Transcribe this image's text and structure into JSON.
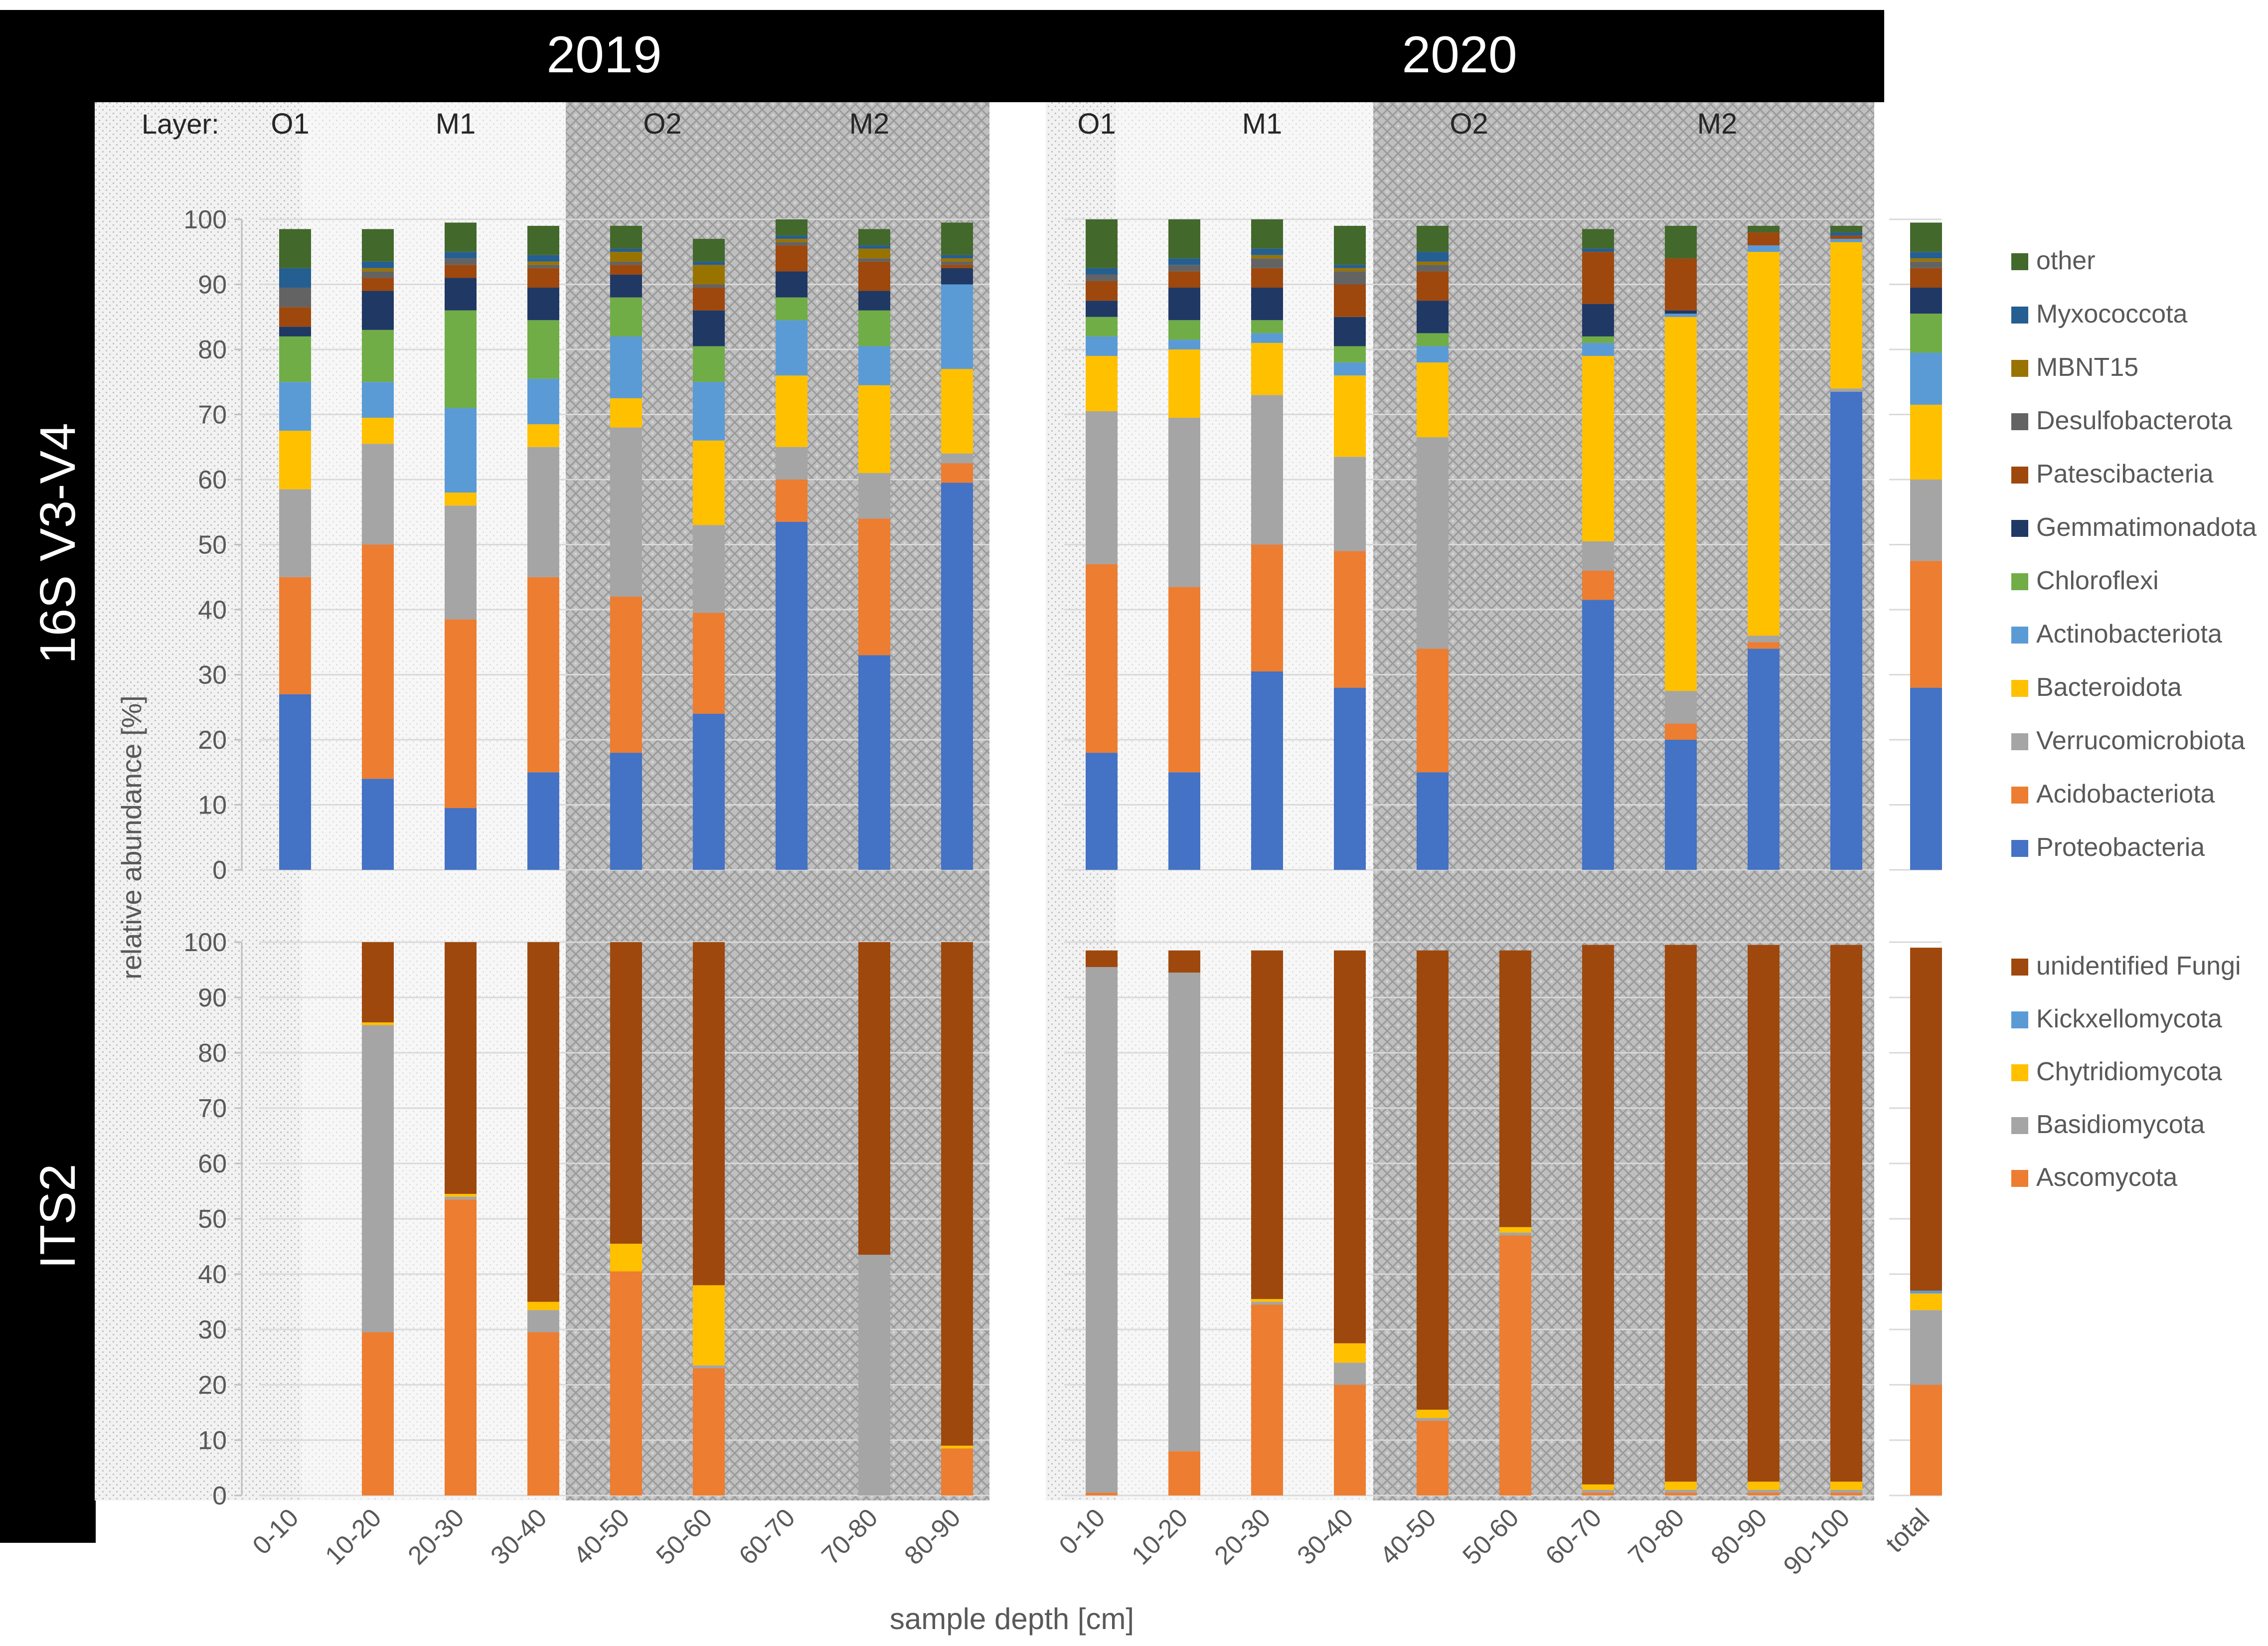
{
  "chart_data": [
    {
      "type": "bar",
      "stacked": true,
      "title": "16S V3-V4",
      "ylabel": "relative abundance [%]",
      "xlabel": "sample depth [cm]",
      "ylim": [
        0,
        100
      ],
      "yticks": [
        0,
        10,
        20,
        30,
        40,
        50,
        60,
        70,
        80,
        90,
        100
      ],
      "layer_label": "Layer:",
      "groups": [
        {
          "year": "2019",
          "categories": [
            "0-10",
            "10-20",
            "20-30",
            "30-40",
            "40-50",
            "50-60",
            "60-70",
            "70-80",
            "80-90"
          ],
          "layers": [
            {
              "name": "O1",
              "from": 0,
              "to": 0,
              "pattern": "light"
            },
            {
              "name": "M1",
              "from": 1,
              "to": 3,
              "pattern": "lighter"
            },
            {
              "name": "O2",
              "from": 4,
              "to": 5,
              "pattern": "dark"
            },
            {
              "name": "M2",
              "from": 6,
              "to": 8,
              "pattern": "dark"
            }
          ],
          "series": [
            {
              "name": "Proteobacteria",
              "values": [
                27,
                14,
                9.5,
                15,
                18,
                24,
                53.5,
                33,
                59.5
              ]
            },
            {
              "name": "Acidobacteriota",
              "values": [
                18,
                36,
                29,
                30,
                24,
                15.5,
                6.5,
                21,
                3
              ]
            },
            {
              "name": "Verrucomicrobiota",
              "values": [
                13.5,
                15.5,
                17.5,
                20,
                26,
                13.5,
                5,
                7,
                1.5
              ]
            },
            {
              "name": "Bacteroidota",
              "values": [
                9,
                4,
                2,
                3.5,
                4.5,
                13,
                11,
                13.5,
                13
              ]
            },
            {
              "name": "Actinobacteriota",
              "values": [
                7.5,
                5.5,
                13,
                7,
                9.5,
                9,
                8.5,
                6,
                13
              ]
            },
            {
              "name": "Chloroflexi",
              "values": [
                7,
                8,
                15,
                9,
                6,
                5.5,
                3.5,
                5.5,
                0
              ]
            },
            {
              "name": "Gemmatimonadota",
              "values": [
                1.5,
                6,
                5,
                5,
                3.5,
                5.5,
                4,
                3,
                2.5
              ]
            },
            {
              "name": "Patescibacteria",
              "values": [
                3,
                2,
                2,
                3,
                1.5,
                3.5,
                4,
                4.5,
                0.5
              ]
            },
            {
              "name": "Desulfobacterota",
              "values": [
                3,
                1,
                1,
                0.5,
                0.5,
                0.5,
                0.5,
                0.5,
                0.5
              ]
            },
            {
              "name": "MBNT15",
              "values": [
                0,
                0.5,
                0,
                0.5,
                1.5,
                3,
                0.5,
                1.5,
                0.5
              ]
            },
            {
              "name": "Myxococcota",
              "values": [
                3,
                1,
                1,
                1,
                0.5,
                0.5,
                0.5,
                0.5,
                0.5
              ]
            },
            {
              "name": "other",
              "values": [
                6,
                5,
                4.5,
                4.5,
                3.5,
                3.5,
                2.5,
                2.5,
                5
              ]
            }
          ]
        },
        {
          "year": "2020",
          "categories": [
            "0-10",
            "10-20",
            "20-30",
            "30-40",
            "40-50",
            "50-60",
            "60-70",
            "70-80",
            "80-90",
            "90-100"
          ],
          "layers": [
            {
              "name": "O1",
              "from": 0,
              "to": 0,
              "pattern": "light"
            },
            {
              "name": "M1",
              "from": 1,
              "to": 3,
              "pattern": "lighter"
            },
            {
              "name": "O2",
              "from": 4,
              "to": 5,
              "pattern": "dark"
            },
            {
              "name": "M2",
              "from": 6,
              "to": 9,
              "pattern": "dark"
            }
          ],
          "series": [
            {
              "name": "Proteobacteria",
              "values": [
                18,
                15,
                30.5,
                28,
                15,
                0,
                41.5,
                20,
                34,
                73.5
              ]
            },
            {
              "name": "Acidobacteriota",
              "values": [
                29,
                28.5,
                19.5,
                21,
                19,
                0,
                4.5,
                2.5,
                1,
                0
              ]
            },
            {
              "name": "Verrucomicrobiota",
              "values": [
                23.5,
                26,
                23,
                14.5,
                32.5,
                0,
                4.5,
                5,
                1,
                0.5
              ]
            },
            {
              "name": "Bacteroidota",
              "values": [
                8.5,
                10.5,
                8,
                12.5,
                11.5,
                0,
                28.5,
                57.5,
                59,
                22.5
              ]
            },
            {
              "name": "Actinobacteriota",
              "values": [
                3,
                1.5,
                1.5,
                2,
                2.5,
                0,
                2,
                0.5,
                1,
                0.5
              ]
            },
            {
              "name": "Chloroflexi",
              "values": [
                3,
                3,
                2,
                2.5,
                2,
                0,
                1,
                0,
                0,
                0
              ]
            },
            {
              "name": "Gemmatimonadota",
              "values": [
                2.5,
                5,
                5,
                4.5,
                5,
                0,
                5,
                0.5,
                0,
                0
              ]
            },
            {
              "name": "Patescibacteria",
              "values": [
                3,
                2.5,
                3,
                5,
                4.5,
                0,
                8,
                8,
                2,
                0.5
              ]
            },
            {
              "name": "Desulfobacterota",
              "values": [
                1,
                1,
                1.5,
                2,
                1,
                0,
                0,
                0,
                0,
                0
              ]
            },
            {
              "name": "MBNT15",
              "values": [
                0,
                0,
                0.5,
                0.5,
                0.5,
                0,
                0,
                0,
                0,
                0
              ]
            },
            {
              "name": "Myxococcota",
              "values": [
                1,
                1,
                1,
                0.5,
                1.5,
                0,
                0.5,
                0,
                0,
                0.5
              ]
            },
            {
              "name": "other",
              "values": [
                7.5,
                6,
                4.5,
                6,
                4,
                0,
                3,
                5,
                1,
                1
              ]
            }
          ]
        },
        {
          "year": "",
          "categories": [
            "total"
          ],
          "layers": [],
          "series": [
            {
              "name": "Proteobacteria",
              "values": [
                28
              ]
            },
            {
              "name": "Acidobacteriota",
              "values": [
                19.5
              ]
            },
            {
              "name": "Verrucomicrobiota",
              "values": [
                12.5
              ]
            },
            {
              "name": "Bacteroidota",
              "values": [
                11.5
              ]
            },
            {
              "name": "Actinobacteriota",
              "values": [
                8
              ]
            },
            {
              "name": "Chloroflexi",
              "values": [
                6
              ]
            },
            {
              "name": "Gemmatimonadota",
              "values": [
                4
              ]
            },
            {
              "name": "Patescibacteria",
              "values": [
                3
              ]
            },
            {
              "name": "Desulfobacterota",
              "values": [
                1
              ]
            },
            {
              "name": "MBNT15",
              "values": [
                0.5
              ]
            },
            {
              "name": "Myxococcota",
              "values": [
                1
              ]
            },
            {
              "name": "other",
              "values": [
                4.5
              ]
            }
          ]
        }
      ],
      "legend": [
        "other",
        "Myxococcota",
        "MBNT15",
        "Desulfobacterota",
        "Patescibacteria",
        "Gemmatimonadota",
        "Chloroflexi",
        "Actinobacteriota",
        "Bacteroidota",
        "Verrucomicrobiota",
        "Acidobacteriota",
        "Proteobacteria"
      ]
    },
    {
      "type": "bar",
      "stacked": true,
      "title": "ITS2",
      "ylabel": "relative abundance [%]",
      "xlabel": "sample depth [cm]",
      "ylim": [
        0,
        100
      ],
      "yticks": [
        0,
        10,
        20,
        30,
        40,
        50,
        60,
        70,
        80,
        90,
        100
      ],
      "groups": [
        {
          "year": "2019",
          "categories": [
            "0-10",
            "10-20",
            "20-30",
            "30-40",
            "40-50",
            "50-60",
            "60-70",
            "70-80",
            "80-90"
          ],
          "series": [
            {
              "name": "Ascomycota",
              "values": [
                0,
                29.5,
                53.5,
                29.5,
                40.5,
                23,
                0,
                0,
                8.5
              ]
            },
            {
              "name": "Basidiomycota",
              "values": [
                0,
                55.5,
                0.5,
                4,
                0,
                0.5,
                0,
                43.5,
                0
              ]
            },
            {
              "name": "Chytridiomycota",
              "values": [
                0,
                0.5,
                0.5,
                1.5,
                5,
                14.5,
                0,
                0,
                0.5
              ]
            },
            {
              "name": "Kickxellomycota",
              "values": [
                0,
                0,
                0,
                0,
                0,
                0,
                0,
                0,
                0
              ]
            },
            {
              "name": "unidentified Fungi",
              "values": [
                0,
                14.5,
                45.5,
                65,
                54.5,
                62,
                0,
                56.5,
                91
              ]
            }
          ]
        },
        {
          "year": "2020",
          "categories": [
            "0-10",
            "10-20",
            "20-30",
            "30-40",
            "40-50",
            "50-60",
            "60-70",
            "70-80",
            "80-90",
            "90-100"
          ],
          "series": [
            {
              "name": "Ascomycota",
              "values": [
                0.5,
                8,
                34.5,
                20,
                13.5,
                47,
                0.5,
                0.5,
                0.5,
                0.5
              ]
            },
            {
              "name": "Basidiomycota",
              "values": [
                95,
                86.5,
                0.5,
                4,
                0.5,
                0.5,
                0.5,
                0.5,
                0.5,
                0.5
              ]
            },
            {
              "name": "Chytridiomycota",
              "values": [
                0,
                0,
                0.5,
                3.5,
                1.5,
                1,
                1,
                1.5,
                1.5,
                1.5
              ]
            },
            {
              "name": "Kickxellomycota",
              "values": [
                0,
                0,
                0,
                0,
                0,
                0,
                0,
                0,
                0,
                0
              ]
            },
            {
              "name": "unidentified Fungi",
              "values": [
                3,
                4,
                63,
                71,
                83,
                50,
                97.5,
                97,
                97,
                97
              ]
            }
          ]
        },
        {
          "year": "",
          "categories": [
            "total"
          ],
          "series": [
            {
              "name": "Ascomycota",
              "values": [
                20
              ]
            },
            {
              "name": "Basidiomycota",
              "values": [
                13.5
              ]
            },
            {
              "name": "Chytridiomycota",
              "values": [
                3
              ]
            },
            {
              "name": "Kickxellomycota",
              "values": [
                0.5
              ]
            },
            {
              "name": "unidentified Fungi",
              "values": [
                62
              ]
            }
          ]
        }
      ],
      "legend": [
        "unidentified Fungi",
        "Kickxellomycota",
        "Chytridiomycota",
        "Basidiomycota",
        "Ascomycota"
      ]
    }
  ],
  "colors": {
    "Proteobacteria": "#4472c4",
    "Acidobacteriota": "#ed7d31",
    "Verrucomicrobiota": "#a5a5a5",
    "Bacteroidota": "#ffc000",
    "Actinobacteriota": "#5b9bd5",
    "Chloroflexi": "#70ad47",
    "Gemmatimonadota": "#203864",
    "Patescibacteria": "#9e480e",
    "Desulfobacterota": "#636363",
    "MBNT15": "#997300",
    "Myxococcota": "#255e91",
    "other": "#43682b",
    "Ascomycota": "#ed7d31",
    "Basidiomycota": "#a5a5a5",
    "Chytridiomycota": "#ffc000",
    "Kickxellomycota": "#5b9bd5",
    "unidentified Fungi": "#9e480e",
    "banner_bg": "#000000",
    "banner_text": "#ffffff"
  }
}
